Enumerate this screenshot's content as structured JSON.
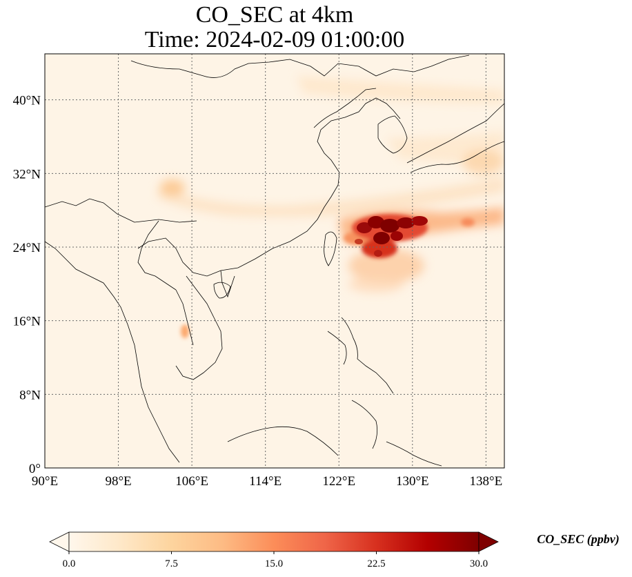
{
  "map": {
    "title_line1": "CO_SEC at 4km",
    "title_line2": "Time: 2024-02-09 01:00:00",
    "extent": {
      "lon": [
        90,
        140
      ],
      "lat": [
        0,
        45
      ]
    },
    "lon_ticks": [
      {
        "value": 90,
        "label": "90°E"
      },
      {
        "value": 98,
        "label": "98°E"
      },
      {
        "value": 106,
        "label": "106°E"
      },
      {
        "value": 114,
        "label": "114°E"
      },
      {
        "value": 122,
        "label": "122°E"
      },
      {
        "value": 130,
        "label": "130°E"
      },
      {
        "value": 138,
        "label": "138°E"
      }
    ],
    "lat_ticks": [
      {
        "value": 0,
        "label": "0°"
      },
      {
        "value": 8,
        "label": "8°N"
      },
      {
        "value": 16,
        "label": "16°N"
      },
      {
        "value": 24,
        "label": "24°N"
      },
      {
        "value": 32,
        "label": "32°N"
      },
      {
        "value": 40,
        "label": "40°N"
      }
    ],
    "gridlines": true,
    "colormap": "OrRd"
  },
  "colorbar": {
    "label": "CO_SEC (ppbv)",
    "min": 0,
    "max": 30,
    "ticks": [
      {
        "value": 0,
        "label": "0.0"
      },
      {
        "value": 7.5,
        "label": "7.5"
      },
      {
        "value": 15,
        "label": "15.0"
      },
      {
        "value": 22.5,
        "label": "22.5"
      },
      {
        "value": 30,
        "label": "30.0"
      }
    ],
    "colors": [
      "#fff7ec",
      "#fee8c8",
      "#fdd49e",
      "#fdbb84",
      "#fc8d59",
      "#ef6548",
      "#d7301f",
      "#b30000",
      "#7f0000"
    ]
  }
}
